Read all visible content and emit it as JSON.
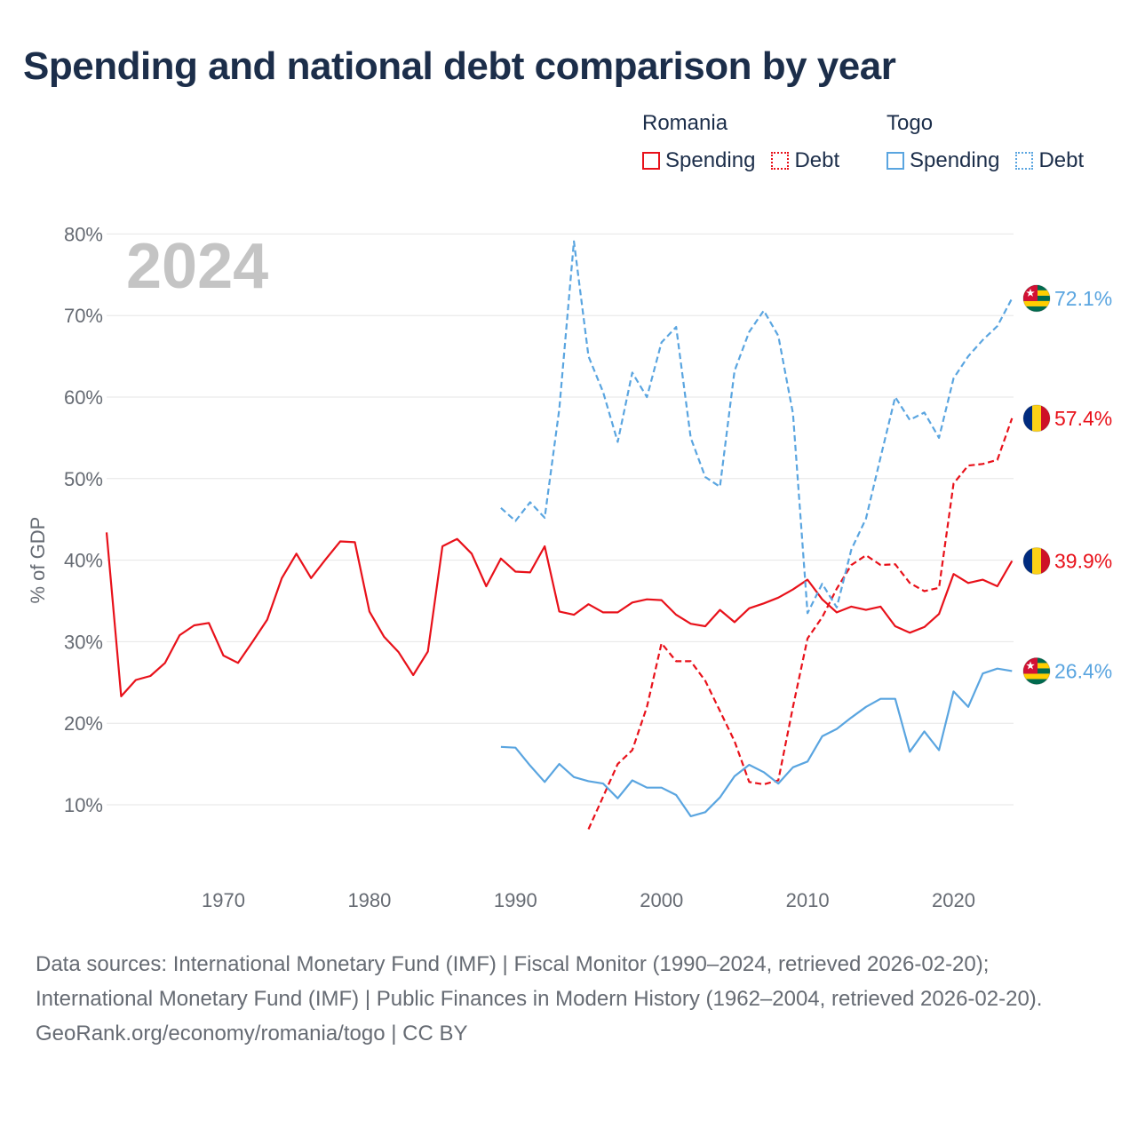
{
  "title": "Spending and national debt comparison by year",
  "year_watermark": "2024",
  "legend": {
    "groups": [
      {
        "country": "Romania",
        "color": "#e8111a",
        "items": [
          {
            "label": "Spending",
            "style": "solid"
          },
          {
            "label": "Debt",
            "style": "dotted"
          }
        ]
      },
      {
        "country": "Togo",
        "color": "#5aa5e0",
        "items": [
          {
            "label": "Spending",
            "style": "solid"
          },
          {
            "label": "Debt",
            "style": "dotted"
          }
        ]
      }
    ]
  },
  "footer": {
    "sources": "Data sources: International Monetary Fund (IMF) | Fiscal Monitor (1990–2024, retrieved 2026-02-20); International Monetary Fund (IMF) | Public Finances in Modern History (1962–2004, retrieved 2026-02-20).",
    "credit": "GeoRank.org/economy/romania/togo | CC BY"
  },
  "chart_data": {
    "type": "line",
    "ylabel": "% of GDP",
    "xlabel": "",
    "xlim": [
      1962,
      2024
    ],
    "ylim": [
      0,
      80
    ],
    "yticks": [
      10,
      20,
      30,
      40,
      50,
      60,
      70,
      80
    ],
    "ytick_labels": [
      "10%",
      "20%",
      "30%",
      "40%",
      "50%",
      "60%",
      "70%",
      "80%"
    ],
    "xticks": [
      1970,
      1980,
      1990,
      2000,
      2010,
      2020
    ],
    "xtick_labels": [
      "1970",
      "1980",
      "1990",
      "2000",
      "2010",
      "2020"
    ],
    "grid": true,
    "series": [
      {
        "name": "Romania Spending",
        "country": "Romania",
        "flag": "romania",
        "color": "#e8111a",
        "dash": "solid",
        "end_label": "39.9%",
        "x": [
          1962,
          1963,
          1964,
          1965,
          1966,
          1967,
          1968,
          1969,
          1970,
          1971,
          1972,
          1973,
          1974,
          1975,
          1976,
          1977,
          1978,
          1979,
          1980,
          1981,
          1982,
          1983,
          1984,
          1985,
          1986,
          1987,
          1988,
          1989,
          1990,
          1991,
          1992,
          1993,
          1994,
          1995,
          1996,
          1997,
          1998,
          1999,
          2000,
          2001,
          2002,
          2003,
          2004,
          2005,
          2006,
          2007,
          2008,
          2009,
          2010,
          2011,
          2012,
          2013,
          2014,
          2015,
          2016,
          2017,
          2018,
          2019,
          2020,
          2021,
          2022,
          2023,
          2024
        ],
        "y": [
          43.4,
          23.3,
          25.3,
          25.8,
          27.4,
          30.8,
          32.0,
          32.3,
          28.3,
          27.4,
          30.0,
          32.7,
          37.8,
          40.8,
          37.8,
          40.1,
          42.3,
          42.2,
          33.7,
          30.6,
          28.7,
          25.9,
          28.8,
          41.7,
          42.6,
          40.8,
          36.8,
          40.2,
          38.6,
          38.5,
          41.7,
          33.7,
          33.3,
          34.6,
          33.6,
          33.6,
          34.8,
          35.2,
          35.1,
          33.3,
          32.2,
          31.9,
          33.9,
          32.4,
          34.1,
          34.7,
          35.4,
          36.4,
          37.6,
          35.2,
          33.6,
          34.3,
          33.9,
          34.3,
          31.9,
          31.1,
          31.8,
          33.4,
          38.3,
          37.2,
          37.6,
          36.8,
          39.9
        ]
      },
      {
        "name": "Romania Debt",
        "country": "Romania",
        "flag": "romania",
        "color": "#e8111a",
        "dash": "dashed",
        "end_label": "57.4%",
        "x": [
          1995,
          1996,
          1997,
          1998,
          1999,
          2000,
          2001,
          2002,
          2003,
          2004,
          2005,
          2006,
          2007,
          2008,
          2009,
          2010,
          2011,
          2012,
          2013,
          2014,
          2015,
          2016,
          2017,
          2018,
          2019,
          2020,
          2021,
          2022,
          2023,
          2024
        ],
        "y": [
          7.0,
          11.0,
          15.0,
          16.7,
          22.0,
          29.8,
          27.6,
          27.6,
          25.2,
          21.5,
          17.8,
          12.8,
          12.5,
          13.0,
          22.0,
          30.4,
          33.0,
          36.5,
          39.4,
          40.6,
          39.4,
          39.5,
          37.2,
          36.2,
          36.6,
          49.4,
          51.6,
          51.8,
          52.3,
          57.4
        ]
      },
      {
        "name": "Togo Spending",
        "country": "Togo",
        "flag": "togo",
        "color": "#5aa5e0",
        "dash": "solid",
        "end_label": "26.4%",
        "x": [
          1989,
          1990,
          1991,
          1992,
          1993,
          1994,
          1995,
          1996,
          1997,
          1998,
          1999,
          2000,
          2001,
          2002,
          2003,
          2004,
          2005,
          2006,
          2007,
          2008,
          2009,
          2010,
          2011,
          2012,
          2013,
          2014,
          2015,
          2016,
          2017,
          2018,
          2019,
          2020,
          2021,
          2022,
          2023,
          2024
        ],
        "y": [
          17.1,
          17.0,
          14.8,
          12.8,
          15.0,
          13.4,
          12.9,
          12.6,
          10.8,
          13.0,
          12.1,
          12.1,
          11.2,
          8.6,
          9.1,
          10.9,
          13.5,
          14.9,
          14.0,
          12.6,
          14.6,
          15.3,
          18.4,
          19.3,
          20.7,
          22.0,
          23.0,
          23.0,
          16.5,
          19.0,
          16.7,
          23.9,
          22.0,
          26.1,
          26.7,
          26.4
        ]
      },
      {
        "name": "Togo Debt",
        "country": "Togo",
        "flag": "togo",
        "color": "#5aa5e0",
        "dash": "dashed",
        "end_label": "72.1%",
        "x": [
          1989,
          1990,
          1991,
          1992,
          1993,
          1994,
          1995,
          1996,
          1997,
          1998,
          1999,
          2000,
          2001,
          2002,
          2003,
          2004,
          2005,
          2006,
          2007,
          2008,
          2009,
          2010,
          2011,
          2012,
          2013,
          2014,
          2015,
          2016,
          2017,
          2018,
          2019,
          2020,
          2021,
          2022,
          2023,
          2024
        ],
        "y": [
          46.4,
          44.8,
          47.1,
          45.2,
          58.5,
          79.1,
          65.0,
          60.6,
          54.5,
          63.0,
          60.0,
          66.7,
          68.6,
          55.0,
          50.2,
          49.0,
          63.2,
          68.0,
          70.6,
          67.5,
          58.0,
          33.5,
          37.1,
          34.2,
          41.3,
          45.1,
          52.6,
          60.0,
          57.2,
          58.1,
          55.0,
          62.3,
          65.0,
          67.0,
          68.7,
          72.1
        ]
      }
    ]
  }
}
